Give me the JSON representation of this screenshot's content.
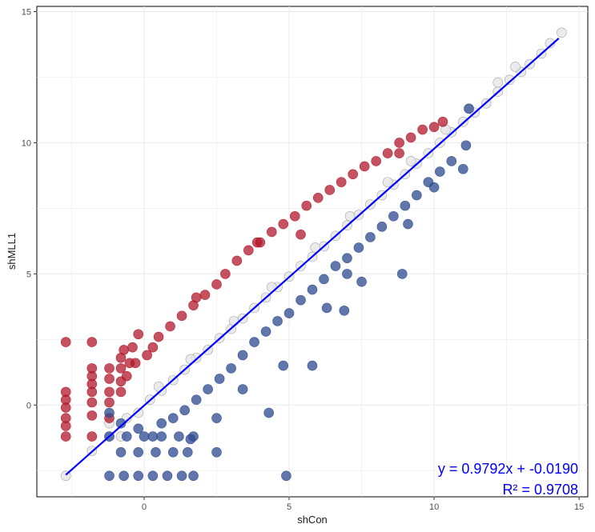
{
  "chart_data": {
    "type": "scatter",
    "title": "",
    "xlabel": "shCon",
    "ylabel": "shMLL1",
    "xlim": [
      -3.7,
      15.3
    ],
    "ylim": [
      -3.5,
      15.2
    ],
    "x_ticks": [
      0,
      5,
      10,
      15
    ],
    "y_ticks": [
      0,
      5,
      10,
      15
    ],
    "grid": true,
    "colors": {
      "up": "#b2182b",
      "down": "#2c4a8f",
      "neutral": "#e8e8e8",
      "neutral_stroke": "#9a9a9a",
      "fit_line": "#0000ff",
      "frame": "#000000",
      "grid": "#ebebeb"
    },
    "fit": {
      "slope": 0.9792,
      "intercept": -0.019,
      "x_range": [
        -2.7,
        14.3
      ]
    },
    "annotations": {
      "equation": "y = 0.9792x + -0.0190",
      "r_squared": "R² = 0.9708"
    },
    "series": [
      {
        "name": "neutral",
        "points": [
          [
            -2.7,
            -2.7
          ],
          [
            -1.8,
            -1.75
          ],
          [
            -1.2,
            -1.2
          ],
          [
            -0.8,
            -1.2
          ],
          [
            -1.2,
            -0.7
          ],
          [
            -0.6,
            -0.5
          ],
          [
            -0.2,
            -0.3
          ],
          [
            0.2,
            0.2
          ],
          [
            0.6,
            0.55
          ],
          [
            1.0,
            0.95
          ],
          [
            1.4,
            1.35
          ],
          [
            1.8,
            1.8
          ],
          [
            2.2,
            2.1
          ],
          [
            2.6,
            2.55
          ],
          [
            3.0,
            2.9
          ],
          [
            3.4,
            3.3
          ],
          [
            3.8,
            3.7
          ],
          [
            4.2,
            4.1
          ],
          [
            4.6,
            4.5
          ],
          [
            5.0,
            4.9
          ],
          [
            5.4,
            5.3
          ],
          [
            5.8,
            5.65
          ],
          [
            6.2,
            6.05
          ],
          [
            6.6,
            6.45
          ],
          [
            7.0,
            6.85
          ],
          [
            7.4,
            7.25
          ],
          [
            7.8,
            7.65
          ],
          [
            8.2,
            8.0
          ],
          [
            8.6,
            8.4
          ],
          [
            9.0,
            8.8
          ],
          [
            9.4,
            9.2
          ],
          [
            9.8,
            9.6
          ],
          [
            10.2,
            10.0
          ],
          [
            10.6,
            10.4
          ],
          [
            11.0,
            10.8
          ],
          [
            11.4,
            11.15
          ],
          [
            11.8,
            11.5
          ],
          [
            12.2,
            11.95
          ],
          [
            12.6,
            12.4
          ],
          [
            13.0,
            12.7
          ],
          [
            13.3,
            13.0
          ],
          [
            13.7,
            13.4
          ],
          [
            14.0,
            13.8
          ],
          [
            14.4,
            14.2
          ],
          [
            11.2,
            11.3
          ],
          [
            12.2,
            12.3
          ],
          [
            12.8,
            12.9
          ],
          [
            3.1,
            3.2
          ],
          [
            4.4,
            4.5
          ],
          [
            5.9,
            6.0
          ],
          [
            7.1,
            7.2
          ],
          [
            8.4,
            8.5
          ],
          [
            9.2,
            9.3
          ],
          [
            10.4,
            10.5
          ],
          [
            0.5,
            0.7
          ],
          [
            1.6,
            1.75
          ]
        ]
      },
      {
        "name": "up",
        "points": [
          [
            -2.7,
            2.4
          ],
          [
            -1.8,
            2.4
          ],
          [
            -2.7,
            0.5
          ],
          [
            -2.7,
            0.2
          ],
          [
            -2.7,
            -0.1
          ],
          [
            -2.7,
            -0.5
          ],
          [
            -2.7,
            -0.8
          ],
          [
            -2.7,
            -1.2
          ],
          [
            -1.8,
            1.4
          ],
          [
            -1.8,
            1.1
          ],
          [
            -1.8,
            0.8
          ],
          [
            -1.8,
            0.5
          ],
          [
            -1.8,
            0.1
          ],
          [
            -1.8,
            -0.4
          ],
          [
            -1.8,
            -1.2
          ],
          [
            -1.2,
            1.4
          ],
          [
            -1.2,
            1.0
          ],
          [
            -1.2,
            0.5
          ],
          [
            -1.2,
            0.1
          ],
          [
            -1.2,
            -0.5
          ],
          [
            -0.8,
            1.8
          ],
          [
            -0.8,
            1.4
          ],
          [
            -0.8,
            0.9
          ],
          [
            -0.8,
            0.5
          ],
          [
            -0.7,
            2.1
          ],
          [
            -0.6,
            1.1
          ],
          [
            -0.5,
            1.6
          ],
          [
            -0.4,
            2.2
          ],
          [
            -0.2,
            2.7
          ],
          [
            -0.3,
            1.6
          ],
          [
            0.1,
            1.9
          ],
          [
            0.3,
            2.2
          ],
          [
            0.5,
            2.6
          ],
          [
            0.9,
            3.0
          ],
          [
            1.3,
            3.4
          ],
          [
            1.7,
            3.8
          ],
          [
            2.1,
            4.2
          ],
          [
            2.5,
            4.6
          ],
          [
            2.8,
            5.0
          ],
          [
            3.2,
            5.5
          ],
          [
            3.6,
            5.9
          ],
          [
            4.0,
            6.2
          ],
          [
            4.4,
            6.6
          ],
          [
            4.8,
            6.9
          ],
          [
            5.2,
            7.2
          ],
          [
            5.6,
            7.6
          ],
          [
            6.0,
            7.9
          ],
          [
            6.4,
            8.2
          ],
          [
            6.8,
            8.5
          ],
          [
            7.2,
            8.8
          ],
          [
            7.6,
            9.1
          ],
          [
            8.0,
            9.3
          ],
          [
            8.4,
            9.6
          ],
          [
            8.8,
            10.0
          ],
          [
            9.2,
            10.2
          ],
          [
            9.6,
            10.5
          ],
          [
            10.0,
            10.6
          ],
          [
            10.3,
            10.8
          ],
          [
            8.8,
            9.6
          ],
          [
            3.9,
            6.2
          ],
          [
            1.8,
            4.1
          ],
          [
            5.4,
            6.5
          ]
        ]
      },
      {
        "name": "down",
        "points": [
          [
            -1.2,
            -0.3
          ],
          [
            -0.8,
            -0.7
          ],
          [
            -0.2,
            -0.9
          ],
          [
            0.3,
            -1.2
          ],
          [
            0.6,
            -0.7
          ],
          [
            1.0,
            -0.5
          ],
          [
            1.4,
            -0.2
          ],
          [
            1.8,
            0.2
          ],
          [
            2.2,
            0.6
          ],
          [
            2.6,
            1.0
          ],
          [
            3.0,
            1.4
          ],
          [
            3.4,
            1.9
          ],
          [
            3.8,
            2.4
          ],
          [
            4.2,
            2.8
          ],
          [
            4.6,
            3.2
          ],
          [
            5.0,
            3.5
          ],
          [
            5.4,
            4.0
          ],
          [
            5.8,
            4.4
          ],
          [
            6.2,
            4.8
          ],
          [
            6.6,
            5.3
          ],
          [
            7.0,
            5.6
          ],
          [
            7.4,
            6.0
          ],
          [
            7.8,
            6.4
          ],
          [
            8.2,
            6.8
          ],
          [
            8.6,
            7.2
          ],
          [
            9.0,
            7.6
          ],
          [
            9.4,
            8.0
          ],
          [
            9.8,
            8.5
          ],
          [
            10.2,
            8.9
          ],
          [
            10.6,
            9.3
          ],
          [
            11.1,
            9.9
          ],
          [
            11.2,
            11.3
          ],
          [
            11.0,
            9.0
          ],
          [
            10.0,
            8.3
          ],
          [
            9.1,
            6.9
          ],
          [
            8.9,
            5.0
          ],
          [
            7.0,
            5.0
          ],
          [
            7.5,
            4.7
          ],
          [
            6.3,
            3.7
          ],
          [
            6.9,
            3.6
          ],
          [
            5.8,
            1.5
          ],
          [
            4.8,
            1.5
          ],
          [
            4.3,
            -0.3
          ],
          [
            3.4,
            0.6
          ],
          [
            2.5,
            -0.5
          ],
          [
            2.5,
            -1.8
          ],
          [
            1.6,
            -1.3
          ],
          [
            -1.2,
            -1.2
          ],
          [
            -0.6,
            -1.2
          ],
          [
            0.0,
            -1.2
          ],
          [
            0.6,
            -1.2
          ],
          [
            1.2,
            -1.2
          ],
          [
            1.7,
            -1.2
          ],
          [
            -0.8,
            -1.8
          ],
          [
            -0.2,
            -1.8
          ],
          [
            0.4,
            -1.8
          ],
          [
            1.0,
            -1.8
          ],
          [
            1.5,
            -1.8
          ],
          [
            -1.2,
            -2.7
          ],
          [
            -0.7,
            -2.7
          ],
          [
            -0.2,
            -2.7
          ],
          [
            0.3,
            -2.7
          ],
          [
            0.8,
            -2.7
          ],
          [
            1.3,
            -2.7
          ],
          [
            1.7,
            -2.7
          ],
          [
            4.9,
            -2.7
          ]
        ]
      }
    ]
  }
}
